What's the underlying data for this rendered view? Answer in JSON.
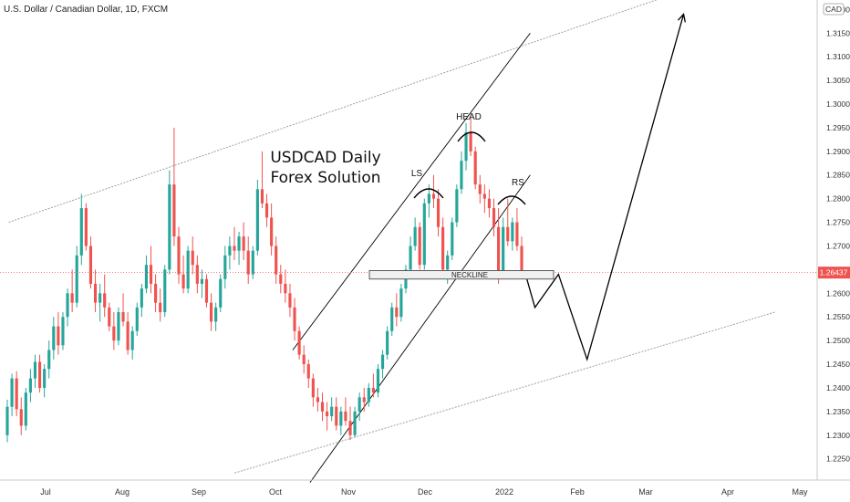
{
  "chart_data": {
    "type": "candlestick",
    "title": "U.S. Dollar / Canadian Dollar, 1D, FXCM",
    "currency_badge": "CAD",
    "annotation_lines": [
      "USDCAD Daily",
      "Forex Solution"
    ],
    "pattern_labels": {
      "left_shoulder": "LS",
      "head": "HEAD",
      "right_shoulder": "RS",
      "neckline": "NECKLINE"
    },
    "last_price": "1.26437",
    "last_price_value": 1.26437,
    "ylim": [
      1.2205,
      1.322
    ],
    "y_ticks": [
      "1.32000",
      "1.31500",
      "1.31000",
      "1.30500",
      "1.30000",
      "1.29500",
      "1.29000",
      "1.28500",
      "1.28000",
      "1.27500",
      "1.27000",
      "1.26500",
      "1.26000",
      "1.25500",
      "1.25000",
      "1.24500",
      "1.24000",
      "1.23500",
      "1.23000",
      "1.22500"
    ],
    "x_ticks": [
      "Jul",
      "Aug",
      "Sep",
      "Oct",
      "Nov",
      "Dec",
      "2022",
      "Feb",
      "Mar",
      "Apr",
      "May"
    ],
    "colors": {
      "up": "#26a69a",
      "down": "#ef5350",
      "accent": "#ef5350",
      "line": "#000000",
      "channel": "#888888"
    },
    "candles": [
      [
        1.23,
        1.2375,
        1.2285,
        1.236
      ],
      [
        1.236,
        1.243,
        1.234,
        1.242
      ],
      [
        1.242,
        1.2435,
        1.234,
        1.2355
      ],
      [
        1.2355,
        1.238,
        1.23,
        1.232
      ],
      [
        1.232,
        1.24,
        1.231,
        1.239
      ],
      [
        1.239,
        1.244,
        1.237,
        1.242
      ],
      [
        1.242,
        1.247,
        1.24,
        1.2455
      ],
      [
        1.2455,
        1.247,
        1.239,
        1.24
      ],
      [
        1.24,
        1.245,
        1.238,
        1.244
      ],
      [
        1.244,
        1.25,
        1.242,
        1.248
      ],
      [
        1.248,
        1.255,
        1.246,
        1.253
      ],
      [
        1.253,
        1.256,
        1.247,
        1.249
      ],
      [
        1.249,
        1.256,
        1.248,
        1.255
      ],
      [
        1.255,
        1.261,
        1.253,
        1.26
      ],
      [
        1.26,
        1.265,
        1.256,
        1.258
      ],
      [
        1.258,
        1.27,
        1.257,
        1.268
      ],
      [
        1.268,
        1.281,
        1.266,
        1.278
      ],
      [
        1.278,
        1.279,
        1.269,
        1.27
      ],
      [
        1.27,
        1.272,
        1.261,
        1.262
      ],
      [
        1.262,
        1.265,
        1.256,
        1.258
      ],
      [
        1.258,
        1.262,
        1.254,
        1.26
      ],
      [
        1.26,
        1.264,
        1.255,
        1.257
      ],
      [
        1.257,
        1.258,
        1.252,
        1.253
      ],
      [
        1.253,
        1.256,
        1.248,
        1.25
      ],
      [
        1.25,
        1.257,
        1.249,
        1.256
      ],
      [
        1.256,
        1.26,
        1.253,
        1.254
      ],
      [
        1.254,
        1.256,
        1.247,
        1.248
      ],
      [
        1.248,
        1.253,
        1.246,
        1.252
      ],
      [
        1.252,
        1.258,
        1.251,
        1.257
      ],
      [
        1.257,
        1.262,
        1.255,
        1.261
      ],
      [
        1.261,
        1.268,
        1.26,
        1.266
      ],
      [
        1.266,
        1.27,
        1.26,
        1.262
      ],
      [
        1.262,
        1.264,
        1.256,
        1.258
      ],
      [
        1.258,
        1.261,
        1.254,
        1.256
      ],
      [
        1.256,
        1.266,
        1.255,
        1.265
      ],
      [
        1.265,
        1.286,
        1.264,
        1.283
      ],
      [
        1.283,
        1.295,
        1.27,
        1.272
      ],
      [
        1.272,
        1.274,
        1.262,
        1.264
      ],
      [
        1.264,
        1.268,
        1.26,
        1.261
      ],
      [
        1.261,
        1.27,
        1.26,
        1.269
      ],
      [
        1.269,
        1.272,
        1.264,
        1.266
      ],
      [
        1.266,
        1.268,
        1.26,
        1.262
      ],
      [
        1.262,
        1.265,
        1.259,
        1.263
      ],
      [
        1.263,
        1.264,
        1.257,
        1.258
      ],
      [
        1.258,
        1.26,
        1.252,
        1.254
      ],
      [
        1.254,
        1.258,
        1.252,
        1.257
      ],
      [
        1.257,
        1.264,
        1.256,
        1.263
      ],
      [
        1.263,
        1.27,
        1.261,
        1.268
      ],
      [
        1.268,
        1.272,
        1.265,
        1.27
      ],
      [
        1.27,
        1.274,
        1.267,
        1.269
      ],
      [
        1.269,
        1.273,
        1.266,
        1.272
      ],
      [
        1.272,
        1.275,
        1.267,
        1.269
      ],
      [
        1.269,
        1.272,
        1.262,
        1.264
      ],
      [
        1.264,
        1.27,
        1.263,
        1.269
      ],
      [
        1.269,
        1.284,
        1.268,
        1.282
      ],
      [
        1.282,
        1.29,
        1.278,
        1.279
      ],
      [
        1.279,
        1.281,
        1.274,
        1.276
      ],
      [
        1.276,
        1.279,
        1.268,
        1.27
      ],
      [
        1.27,
        1.272,
        1.262,
        1.264
      ],
      [
        1.264,
        1.266,
        1.26,
        1.262
      ],
      [
        1.262,
        1.265,
        1.258,
        1.26
      ],
      [
        1.26,
        1.262,
        1.255,
        1.257
      ],
      [
        1.257,
        1.259,
        1.25,
        1.252
      ],
      [
        1.252,
        1.253,
        1.246,
        1.247
      ],
      [
        1.247,
        1.249,
        1.243,
        1.245
      ],
      [
        1.245,
        1.246,
        1.24,
        1.242
      ],
      [
        1.242,
        1.243,
        1.236,
        1.238
      ],
      [
        1.238,
        1.24,
        1.235,
        1.237
      ],
      [
        1.237,
        1.239,
        1.233,
        1.235
      ],
      [
        1.235,
        1.237,
        1.231,
        1.234
      ],
      [
        1.234,
        1.238,
        1.233,
        1.236
      ],
      [
        1.236,
        1.238,
        1.231,
        1.232
      ],
      [
        1.232,
        1.236,
        1.23,
        1.235
      ],
      [
        1.235,
        1.238,
        1.232,
        1.233
      ],
      [
        1.233,
        1.236,
        1.229,
        1.23
      ],
      [
        1.23,
        1.236,
        1.2295,
        1.235
      ],
      [
        1.235,
        1.239,
        1.233,
        1.238
      ],
      [
        1.238,
        1.24,
        1.235,
        1.237
      ],
      [
        1.237,
        1.241,
        1.236,
        1.24
      ],
      [
        1.24,
        1.243,
        1.238,
        1.239
      ],
      [
        1.239,
        1.245,
        1.238,
        1.244
      ],
      [
        1.244,
        1.248,
        1.242,
        1.247
      ],
      [
        1.247,
        1.253,
        1.246,
        1.252
      ],
      [
        1.252,
        1.258,
        1.251,
        1.257
      ],
      [
        1.257,
        1.26,
        1.253,
        1.255
      ],
      [
        1.255,
        1.262,
        1.254,
        1.261
      ],
      [
        1.261,
        1.266,
        1.26,
        1.265
      ],
      [
        1.265,
        1.272,
        1.264,
        1.27
      ],
      [
        1.27,
        1.276,
        1.269,
        1.274
      ],
      [
        1.274,
        1.275,
        1.265,
        1.266
      ],
      [
        1.266,
        1.28,
        1.265,
        1.279
      ],
      [
        1.279,
        1.283,
        1.276,
        1.281
      ],
      [
        1.281,
        1.285,
        1.278,
        1.28
      ],
      [
        1.28,
        1.282,
        1.272,
        1.274
      ],
      [
        1.274,
        1.276,
        1.264,
        1.265
      ],
      [
        1.265,
        1.269,
        1.262,
        1.268
      ],
      [
        1.268,
        1.276,
        1.267,
        1.275
      ],
      [
        1.275,
        1.283,
        1.274,
        1.282
      ],
      [
        1.282,
        1.29,
        1.281,
        1.288
      ],
      [
        1.288,
        1.296,
        1.286,
        1.294
      ],
      [
        1.294,
        1.297,
        1.289,
        1.29
      ],
      [
        1.29,
        1.291,
        1.282,
        1.283
      ],
      [
        1.283,
        1.285,
        1.279,
        1.281
      ],
      [
        1.281,
        1.283,
        1.277,
        1.28
      ],
      [
        1.28,
        1.282,
        1.276,
        1.278
      ],
      [
        1.278,
        1.28,
        1.272,
        1.274
      ],
      [
        1.274,
        1.278,
        1.262,
        1.264
      ],
      [
        1.264,
        1.276,
        1.263,
        1.274
      ],
      [
        1.274,
        1.28,
        1.27,
        1.271
      ],
      [
        1.271,
        1.276,
        1.269,
        1.275
      ],
      [
        1.275,
        1.278,
        1.269,
        1.27
      ],
      [
        1.27,
        1.272,
        1.263,
        1.2644
      ]
    ],
    "channel_upper": {
      "start": [
        "2021-06-01",
        1.275
      ],
      "end": [
        "2022-03-15",
        1.324
      ]
    },
    "channel_lower": {
      "start": [
        "2021-09-15",
        1.222
      ],
      "end": [
        "2022-04-20",
        1.256
      ]
    },
    "rising_channel_upper": {
      "start": [
        "2021-10-08",
        1.248
      ],
      "end": [
        "2022-01-12",
        1.315
      ]
    },
    "rising_channel_lower": {
      "start": [
        "2021-10-15",
        1.22
      ],
      "end": [
        "2022-01-12",
        1.285
      ]
    },
    "neckline_zone": [
      1.263,
      1.2648
    ],
    "projection": [
      [
        "2022-01-10",
        1.264
      ],
      [
        "2022-01-14",
        1.257
      ],
      [
        "2022-01-24",
        1.264
      ],
      [
        "2022-02-05",
        1.246
      ],
      [
        "2022-03-15",
        1.319
      ]
    ]
  }
}
